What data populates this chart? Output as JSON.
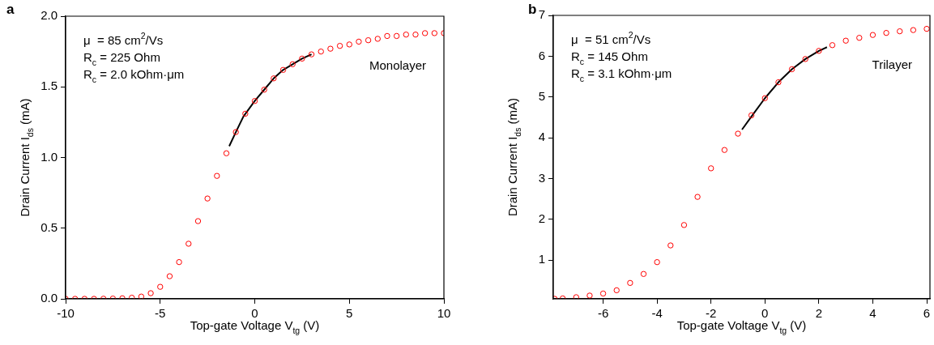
{
  "chart_data": [
    {
      "type": "scatter",
      "title": "a",
      "xlabel": "Top-gate Voltage V$_{tg}$ (V)",
      "ylabel": "Drain Current I$_{ds}$ (mA)",
      "xlim": [
        -10,
        10
      ],
      "xticks": [
        -10,
        -5,
        0,
        5,
        10
      ],
      "ylim": [
        0,
        2
      ],
      "yticks": [
        {
          "value": 0,
          "label": "0.0"
        },
        0.5,
        {
          "value": 1,
          "label": "1.0"
        },
        1.5,
        {
          "value": 2,
          "label": "2.0"
        }
      ],
      "grid": false,
      "legend": false,
      "marker": "circle",
      "annotations": [
        "μ  = 85 cm$^{2}$/Vs",
        "R$_{c}$ = 225 Ohm",
        "R$_{c}$ = 2.0 kOhm·μm",
        "Monolayer"
      ],
      "series": [
        {
          "type": "scatter",
          "color": "#ff0000",
          "x": [
            -10,
            -9.5,
            -9,
            -8.5,
            -8,
            -7.5,
            -7,
            -6.5,
            -6,
            -5.5,
            -5,
            -4.5,
            -4,
            -3.5,
            -3,
            -2.5,
            -2,
            -1.5,
            -1,
            -0.5,
            0,
            0.5,
            1,
            1.5,
            2,
            2.5,
            3,
            3.5,
            4,
            4.5,
            5,
            5.5,
            6,
            6.5,
            7,
            7.5,
            8,
            8.5,
            9,
            9.5,
            10
          ],
          "values": [
            0,
            0,
            0,
            0,
            0.001,
            0.002,
            0.004,
            0.008,
            0.016,
            0.04,
            0.085,
            0.16,
            0.26,
            0.39,
            0.55,
            0.71,
            0.87,
            1.03,
            1.18,
            1.31,
            1.4,
            1.48,
            1.56,
            1.62,
            1.66,
            1.7,
            1.73,
            1.75,
            1.77,
            1.79,
            1.8,
            1.82,
            1.83,
            1.84,
            1.86,
            1.86,
            1.87,
            1.87,
            1.88,
            1.88,
            1.88
          ]
        },
        {
          "type": "line",
          "color": "#000000",
          "marker": "none",
          "x": [
            -1.35,
            -1,
            -0.6,
            0,
            0.5,
            1,
            1.5,
            2,
            2.5,
            3
          ],
          "values": [
            1.08,
            1.18,
            1.29,
            1.4,
            1.48,
            1.56,
            1.62,
            1.66,
            1.7,
            1.73
          ]
        }
      ]
    },
    {
      "type": "scatter",
      "title": "b",
      "xlabel": "Top-gate Voltage V$_{tg}$ (V)",
      "ylabel": "Drain Current I$_{ds}$ (mA)",
      "xlim": [
        -7.85,
        6.12
      ],
      "xticks": [
        -6,
        -4,
        -2,
        0,
        2,
        4,
        6
      ],
      "ylim": [
        0.05,
        7
      ],
      "yticks": [
        1,
        2,
        3,
        4,
        5,
        6,
        7
      ],
      "grid": false,
      "legend": false,
      "marker": "circle",
      "annotations": [
        "μ  = 51 cm$^{2}$/Vs",
        "R$_{c}$ = 145 Ohm",
        "R$_{c}$ = 3.1 kOhm·μm",
        "Trilayer"
      ],
      "series": [
        {
          "type": "scatter",
          "color": "#ff0000",
          "x": [
            -7.8,
            -7.5,
            -7,
            -6.5,
            -6,
            -5.5,
            -5,
            -4.5,
            -4,
            -3.5,
            -3,
            -2.5,
            -2,
            -1.5,
            -1,
            -0.5,
            0,
            0.5,
            1,
            1.5,
            2,
            2.5,
            3,
            3.5,
            4,
            4.5,
            5,
            5.5,
            6
          ],
          "values": [
            0.05,
            0.06,
            0.09,
            0.13,
            0.18,
            0.26,
            0.44,
            0.66,
            0.95,
            1.36,
            1.86,
            2.55,
            3.25,
            3.7,
            4.1,
            4.55,
            4.97,
            5.36,
            5.68,
            5.93,
            6.13,
            6.27,
            6.38,
            6.45,
            6.52,
            6.57,
            6.61,
            6.64,
            6.67
          ]
        },
        {
          "type": "line",
          "color": "#000000",
          "marker": "none",
          "x": [
            -0.85,
            -0.5,
            0,
            0.5,
            1,
            1.5,
            2,
            2.3
          ],
          "values": [
            4.2,
            4.52,
            4.97,
            5.36,
            5.68,
            5.93,
            6.13,
            6.22
          ]
        }
      ]
    }
  ]
}
